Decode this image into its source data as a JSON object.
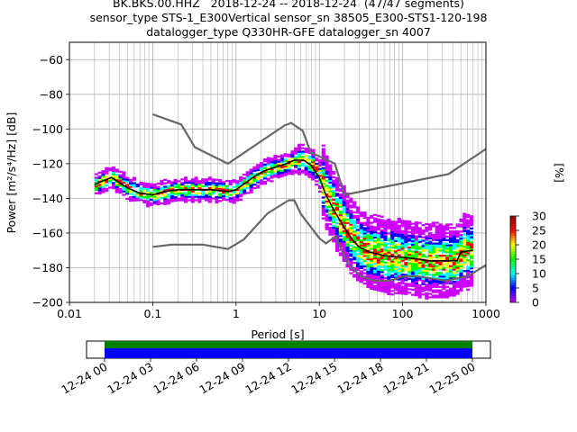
{
  "title_lines": [
    "BK.BKS.00.HHZ   2018-12-24 -- 2018-12-24  (47/47 segments)",
    "sensor_type STS-1_E300Vertical sensor_sn 38505_E300-STS1-120-198",
    "datalogger_type Q330HR-GFE datalogger_sn 4007"
  ],
  "chart_data": {
    "type": "heatmap",
    "xlabel": "Period [s]",
    "ylabel": "Power [m²/s⁴/Hz] [dB]",
    "xscale": "log",
    "xlim": [
      0.01,
      1000
    ],
    "ylim": [
      -200,
      -50
    ],
    "xticks": [
      0.01,
      0.1,
      1,
      10,
      100,
      1000
    ],
    "xtick_labels": [
      "0.01",
      "0.1",
      "1",
      "10",
      "100",
      "1000"
    ],
    "yticks": [
      -200,
      -180,
      -160,
      -140,
      -120,
      -100,
      -80,
      -60
    ],
    "grid": true,
    "series": [
      {
        "kind": "noise-model-high",
        "color": "#666666",
        "points": [
          [
            0.1,
            -91.5
          ],
          [
            0.22,
            -97.4
          ],
          [
            0.32,
            -110.5
          ],
          [
            0.8,
            -120
          ],
          [
            3.8,
            -98
          ],
          [
            4.6,
            -96.5
          ],
          [
            6.3,
            -101
          ],
          [
            7.9,
            -113.5
          ],
          [
            15.4,
            -120
          ],
          [
            20,
            -138
          ],
          [
            354.8,
            -126
          ],
          [
            1000,
            -111.5
          ]
        ]
      },
      {
        "kind": "noise-model-low",
        "color": "#666666",
        "points": [
          [
            0.1,
            -168
          ],
          [
            0.17,
            -166.7
          ],
          [
            0.4,
            -166.7
          ],
          [
            0.8,
            -169.2
          ],
          [
            1.24,
            -163.7
          ],
          [
            2.4,
            -148.6
          ],
          [
            4.3,
            -141.1
          ],
          [
            5,
            -141.1
          ],
          [
            6,
            -149
          ],
          [
            10,
            -163
          ],
          [
            12,
            -166
          ],
          [
            15.6,
            -162
          ],
          [
            21.9,
            -177.5
          ],
          [
            31.6,
            -185
          ],
          [
            45,
            -187.5
          ],
          [
            70,
            -187.5
          ],
          [
            101,
            -185
          ],
          [
            154,
            -185
          ],
          [
            328,
            -187.5
          ],
          [
            600,
            -185
          ],
          [
            1000,
            -178.5
          ]
        ]
      },
      {
        "kind": "mode",
        "color": "#000000",
        "points": [
          [
            0.02,
            -132
          ],
          [
            0.025,
            -130
          ],
          [
            0.032,
            -128
          ],
          [
            0.04,
            -131
          ],
          [
            0.05,
            -134
          ],
          [
            0.07,
            -137
          ],
          [
            0.1,
            -138
          ],
          [
            0.14,
            -136
          ],
          [
            0.2,
            -135
          ],
          [
            0.3,
            -135
          ],
          [
            0.5,
            -135
          ],
          [
            0.8,
            -136
          ],
          [
            1,
            -135
          ],
          [
            1.3,
            -131
          ],
          [
            1.7,
            -127
          ],
          [
            2.2,
            -124
          ],
          [
            3,
            -122
          ],
          [
            4,
            -120
          ],
          [
            5,
            -118
          ],
          [
            6.5,
            -118
          ],
          [
            8,
            -121
          ],
          [
            10,
            -128
          ],
          [
            12,
            -138
          ],
          [
            15,
            -147
          ],
          [
            20,
            -157
          ],
          [
            25,
            -164
          ],
          [
            30,
            -168
          ],
          [
            40,
            -171
          ],
          [
            60,
            -173
          ],
          [
            100,
            -174
          ],
          [
            150,
            -175
          ],
          [
            200,
            -176
          ],
          [
            300,
            -176
          ],
          [
            450,
            -176
          ],
          [
            500,
            -171
          ],
          [
            700,
            -170
          ]
        ]
      }
    ],
    "colorbar": {
      "label": "[%]",
      "min": 0,
      "max": 30,
      "ticks": [
        0,
        5,
        10,
        15,
        20,
        25,
        30
      ],
      "colors": [
        "#ffffff",
        "#cc00ff",
        "#0000ff",
        "#00ffff",
        "#00ff00",
        "#ffff00",
        "#ff0000",
        "#990000"
      ]
    },
    "timeline": {
      "tick_labels": [
        "12-24 00",
        "12-24 03",
        "12-24 06",
        "12-24 09",
        "12-24 12",
        "12-24 15",
        "12-24 18",
        "12-24 21",
        "12-25 00"
      ],
      "coverage_color": "#0000ff",
      "gap_color": "#008000"
    }
  }
}
